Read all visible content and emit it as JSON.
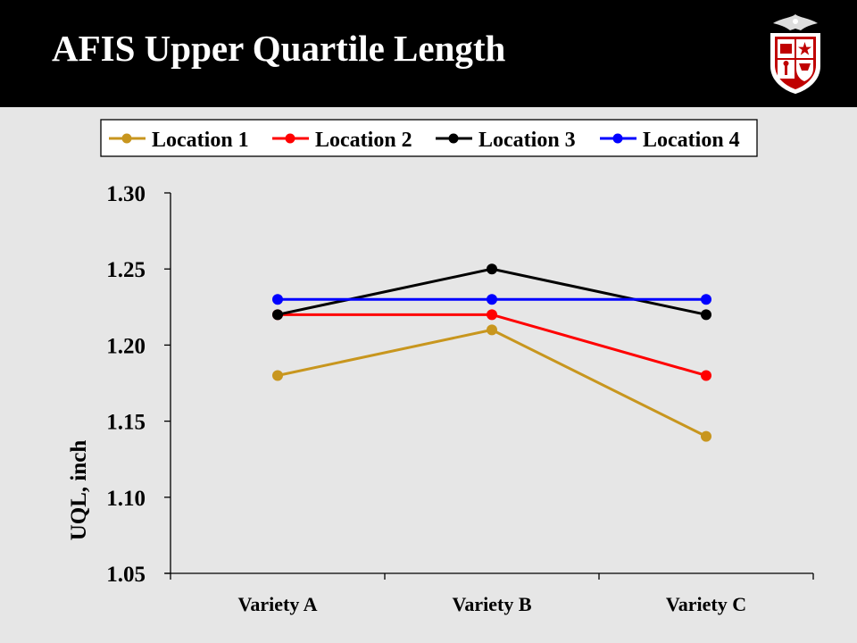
{
  "header": {
    "title": "AFIS Upper Quartile Length",
    "logo_icon": "texas-tech-shield-icon"
  },
  "colors": {
    "header_bg": "#000000",
    "page_bg": "#e6e6e6"
  },
  "chart_data": {
    "type": "line",
    "title": "",
    "xlabel": "",
    "ylabel": "UQL, inch",
    "categories": [
      "Variety A",
      "Variety B",
      "Variety C"
    ],
    "ylim": [
      1.05,
      1.3
    ],
    "yticks": [
      "1.05",
      "1.10",
      "1.15",
      "1.20",
      "1.25",
      "1.30"
    ],
    "grid": false,
    "legend_position": "top",
    "series": [
      {
        "name": "Location 1",
        "color": "#c8961e",
        "values": [
          1.18,
          1.21,
          1.14
        ]
      },
      {
        "name": "Location 2",
        "color": "#ff0000",
        "values": [
          1.22,
          1.22,
          1.18
        ]
      },
      {
        "name": "Location 3",
        "color": "#000000",
        "values": [
          1.22,
          1.25,
          1.22
        ]
      },
      {
        "name": "Location 4",
        "color": "#0000ff",
        "values": [
          1.23,
          1.23,
          1.23
        ]
      }
    ]
  }
}
